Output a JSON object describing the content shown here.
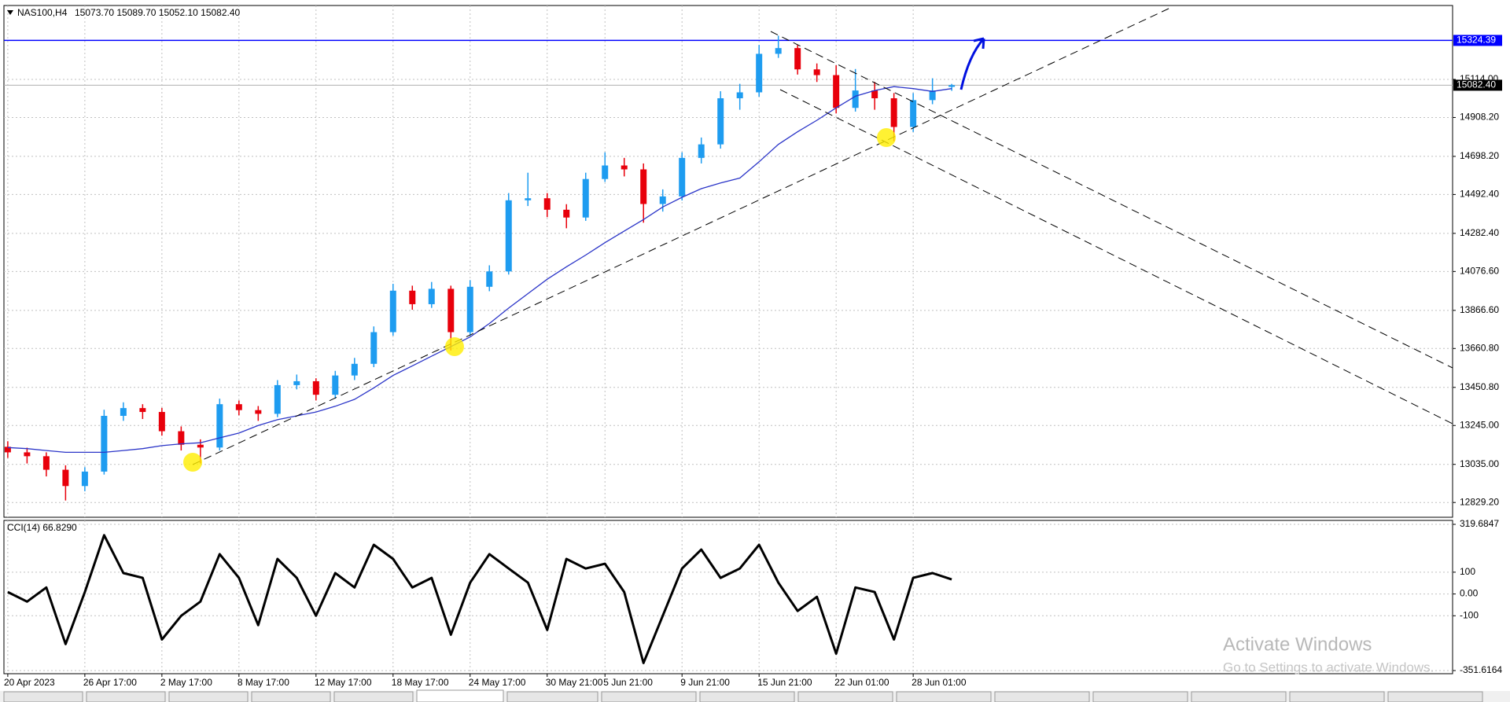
{
  "chart_data": [
    {
      "type": "candlestick",
      "title": "NAS100,H4",
      "subtitle": "15073.70 15089.70 15052.10 15082.40",
      "categories": [
        "20 Apr 2023",
        null,
        null,
        null,
        "26 Apr 17:00",
        null,
        null,
        null,
        "2 May 17:00",
        null,
        null,
        null,
        "8 May 17:00",
        null,
        null,
        null,
        "12 May 17:00",
        null,
        null,
        null,
        "18 May 17:00",
        null,
        null,
        null,
        "24 May 17:00",
        null,
        null,
        null,
        "30 May 21:00",
        null,
        null,
        "5 Jun 21:00",
        null,
        null,
        null,
        "9 Jun 21:00",
        null,
        null,
        null,
        "15 Jun 21:00",
        null,
        null,
        null,
        "22 Jun 01:00",
        null,
        null,
        null,
        "28 Jun 01:00",
        null,
        null
      ],
      "open": [
        13130,
        13100,
        13079,
        13006,
        12918,
        12996,
        13297,
        13339,
        13318,
        13214,
        13141,
        13126,
        13360,
        13328,
        13308,
        13463,
        13484,
        13411,
        13515,
        13578,
        13749,
        13973,
        13900,
        13983,
        13749,
        13994,
        14077,
        14461,
        14472,
        14410,
        14368,
        14576,
        14649,
        14628,
        14441,
        14482,
        14690,
        14763,
        15012,
        15044,
        15252,
        15283,
        15168,
        15137,
        14960,
        15054,
        15012,
        14857,
        15002,
        15073.7
      ],
      "high": [
        13160,
        13125,
        13100,
        13030,
        13020,
        13330,
        13370,
        13360,
        13340,
        13240,
        13170,
        13390,
        13380,
        13350,
        13490,
        13520,
        13500,
        13540,
        13610,
        13780,
        14010,
        14000,
        14020,
        14000,
        14030,
        14110,
        14500,
        14610,
        14500,
        14440,
        14610,
        14720,
        14690,
        14660,
        14520,
        14720,
        14800,
        15050,
        15090,
        15300,
        15350,
        15300,
        15200,
        15190,
        15170,
        15100,
        15040,
        15040,
        15120,
        15089.7
      ],
      "low": [
        13070,
        13040,
        12970,
        12840,
        12890,
        12980,
        13270,
        13280,
        13190,
        13110,
        13040,
        13110,
        13300,
        13270,
        13290,
        13440,
        13380,
        13390,
        13490,
        13560,
        13730,
        13870,
        13880,
        13650,
        13730,
        13970,
        14060,
        14430,
        14370,
        14310,
        14350,
        14560,
        14590,
        14340,
        14400,
        14460,
        14660,
        14740,
        14950,
        15020,
        15230,
        15140,
        15100,
        14930,
        14940,
        14950,
        14780,
        14830,
        14980,
        15052.1
      ],
      "close": [
        13100,
        13079,
        13006,
        12918,
        12996,
        13297,
        13339,
        13318,
        13214,
        13141,
        13126,
        13360,
        13328,
        13308,
        13463,
        13484,
        13411,
        13515,
        13578,
        13749,
        13973,
        13900,
        13983,
        13749,
        13994,
        14077,
        14461,
        14472,
        14410,
        14368,
        14576,
        14649,
        14628,
        14441,
        14482,
        14690,
        14763,
        15012,
        15044,
        15252,
        15283,
        15168,
        15137,
        14960,
        15054,
        15012,
        14857,
        15002,
        15054,
        15082.4
      ],
      "up_color": "#1e9cf0",
      "down_color": "#e8000b",
      "ma": {
        "color": "#2b35c8",
        "values": [
          13126,
          13120,
          13110,
          13100,
          13100,
          13100,
          13110,
          13120,
          13136,
          13146,
          13152,
          13178,
          13204,
          13245,
          13276,
          13297,
          13318,
          13349,
          13386,
          13448,
          13515,
          13567,
          13619,
          13671,
          13723,
          13796,
          13879,
          13957,
          14035,
          14102,
          14165,
          14232,
          14295,
          14357,
          14425,
          14477,
          14524,
          14555,
          14581,
          14669,
          14763,
          14831,
          14893,
          14960,
          15023,
          15054,
          15075,
          15064,
          15049,
          15064
        ]
      },
      "hline": {
        "value": 15324.39,
        "color": "#0000ff"
      },
      "last_price": {
        "value": 15082.4,
        "label": "15082.40"
      },
      "xlim": [
        -0.2,
        75
      ],
      "ylim": [
        12749.4,
        15512.9
      ],
      "yticks": [
        {
          "value": 15114,
          "label": "15114.00"
        },
        {
          "value": 14908.2,
          "label": "14908.20"
        },
        {
          "value": 14698.2,
          "label": "14698.20"
        },
        {
          "value": 14492.4,
          "label": "14492.40"
        },
        {
          "value": 14282.4,
          "label": "14282.40"
        },
        {
          "value": 14076.6,
          "label": "14076.60"
        },
        {
          "value": 13866.6,
          "label": "13866.60"
        },
        {
          "value": 13660.8,
          "label": "13660.80"
        },
        {
          "value": 13450.8,
          "label": "13450.80"
        },
        {
          "value": 13245,
          "label": "13245.00"
        },
        {
          "value": 13035,
          "label": "13035.00"
        },
        {
          "value": 12829.2,
          "label": "12829.20"
        }
      ],
      "grid": true
    },
    {
      "type": "line",
      "title": "CCI(14) 66.8290",
      "color": "#000000",
      "values": [
        9,
        -35,
        30,
        -230,
        9,
        270,
        96,
        74,
        -209,
        -100,
        -35,
        183,
        74,
        -143,
        161,
        74,
        -100,
        96,
        30,
        226,
        161,
        30,
        74,
        -187,
        52,
        183,
        117,
        52,
        -165,
        161,
        117,
        139,
        9,
        -317,
        -100,
        117,
        204,
        74,
        117,
        226,
        52,
        -78,
        -13,
        -274,
        30,
        9,
        -209,
        74,
        96,
        66.829
      ],
      "ylim": [
        -351.6164,
        319.6847
      ],
      "yticks": [
        319.6847,
        100,
        {
          "value": 0,
          "label": "0.00"
        },
        -100,
        -351.6164
      ],
      "grid": true
    }
  ],
  "overlay": {
    "title": "Activate Windows",
    "subtitle": "Go to Settings to activate Windows."
  }
}
